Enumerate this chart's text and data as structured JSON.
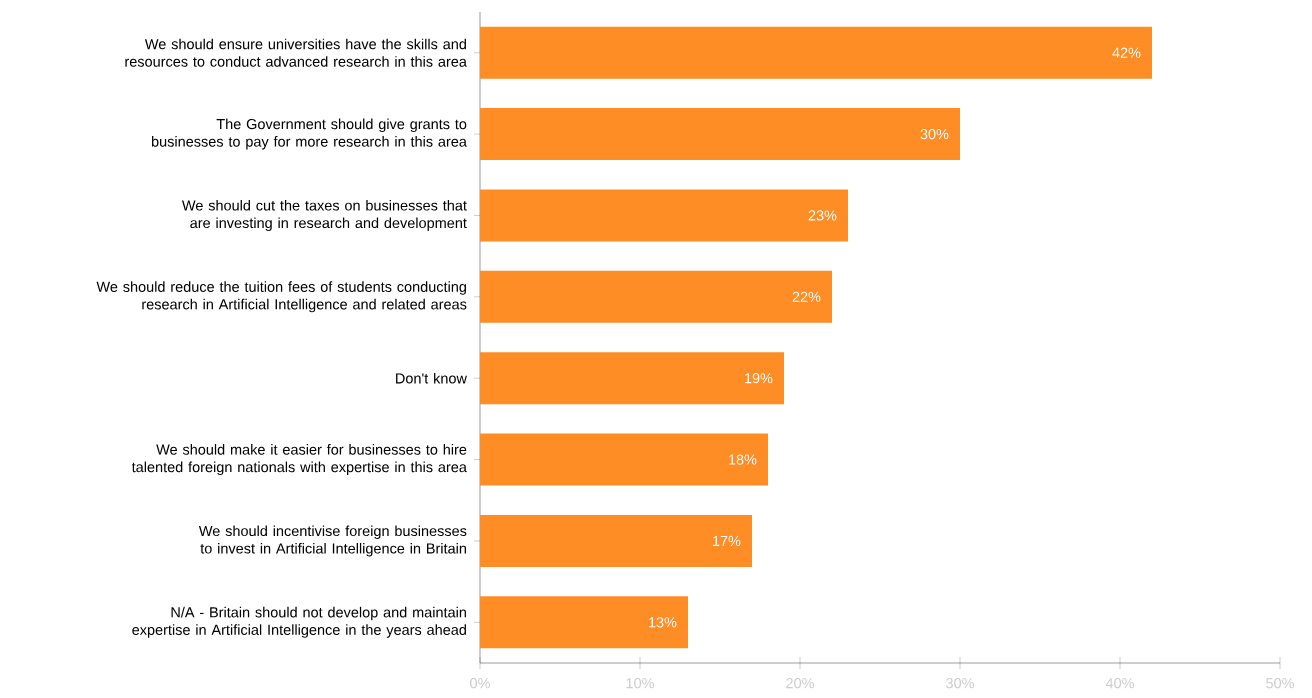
{
  "chart_data": {
    "type": "bar",
    "orientation": "horizontal",
    "categories": [
      "We should ensure universities have the skills and resources to conduct advanced research in this area",
      "The Government should give grants to businesses to pay for more research in this area",
      "We should cut the taxes on businesses that are investing in research and development",
      "We should reduce the tuition fees of students conducting research in Artificial Intelligence and related areas",
      "Don't know",
      "We should make it easier for businesses to hire talented foreign nationals with expertise in this area",
      "We should incentivise foreign businesses to invest in Artificial Intelligence in Britain",
      "N/A - Britain should not develop and maintain expertise in Artificial Intelligence in the years ahead"
    ],
    "values": [
      42,
      30,
      23,
      22,
      19,
      18,
      17,
      13
    ],
    "value_labels": [
      "42%",
      "30%",
      "23%",
      "22%",
      "19%",
      "18%",
      "17%",
      "13%"
    ],
    "color": "#fe8d25",
    "xlim": [
      0,
      50
    ],
    "xticks": [
      {
        "value": 0,
        "label": "0%"
      },
      {
        "value": 10,
        "label": "10%"
      },
      {
        "value": 20,
        "label": "20%"
      },
      {
        "value": 30,
        "label": "30%"
      },
      {
        "value": 40,
        "label": "40%"
      },
      {
        "value": 50,
        "label": "50%"
      }
    ]
  }
}
